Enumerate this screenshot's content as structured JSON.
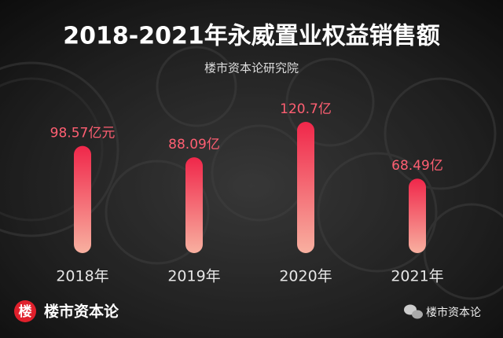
{
  "chart_data": {
    "type": "bar",
    "title": "2018-2021年永威置业权益销售额",
    "subtitle": "楼市资本论研究院",
    "categories": [
      "2018年",
      "2019年",
      "2020年",
      "2021年"
    ],
    "values": [
      98.57,
      88.09,
      120.7,
      68.49
    ],
    "value_labels": [
      "98.57亿元",
      "88.09亿",
      "120.7亿",
      "68.49亿"
    ],
    "color": "#f0274a"
  },
  "footer": {
    "logo": "楼",
    "brand": "楼市资本论",
    "wechat": "楼市资本论"
  }
}
